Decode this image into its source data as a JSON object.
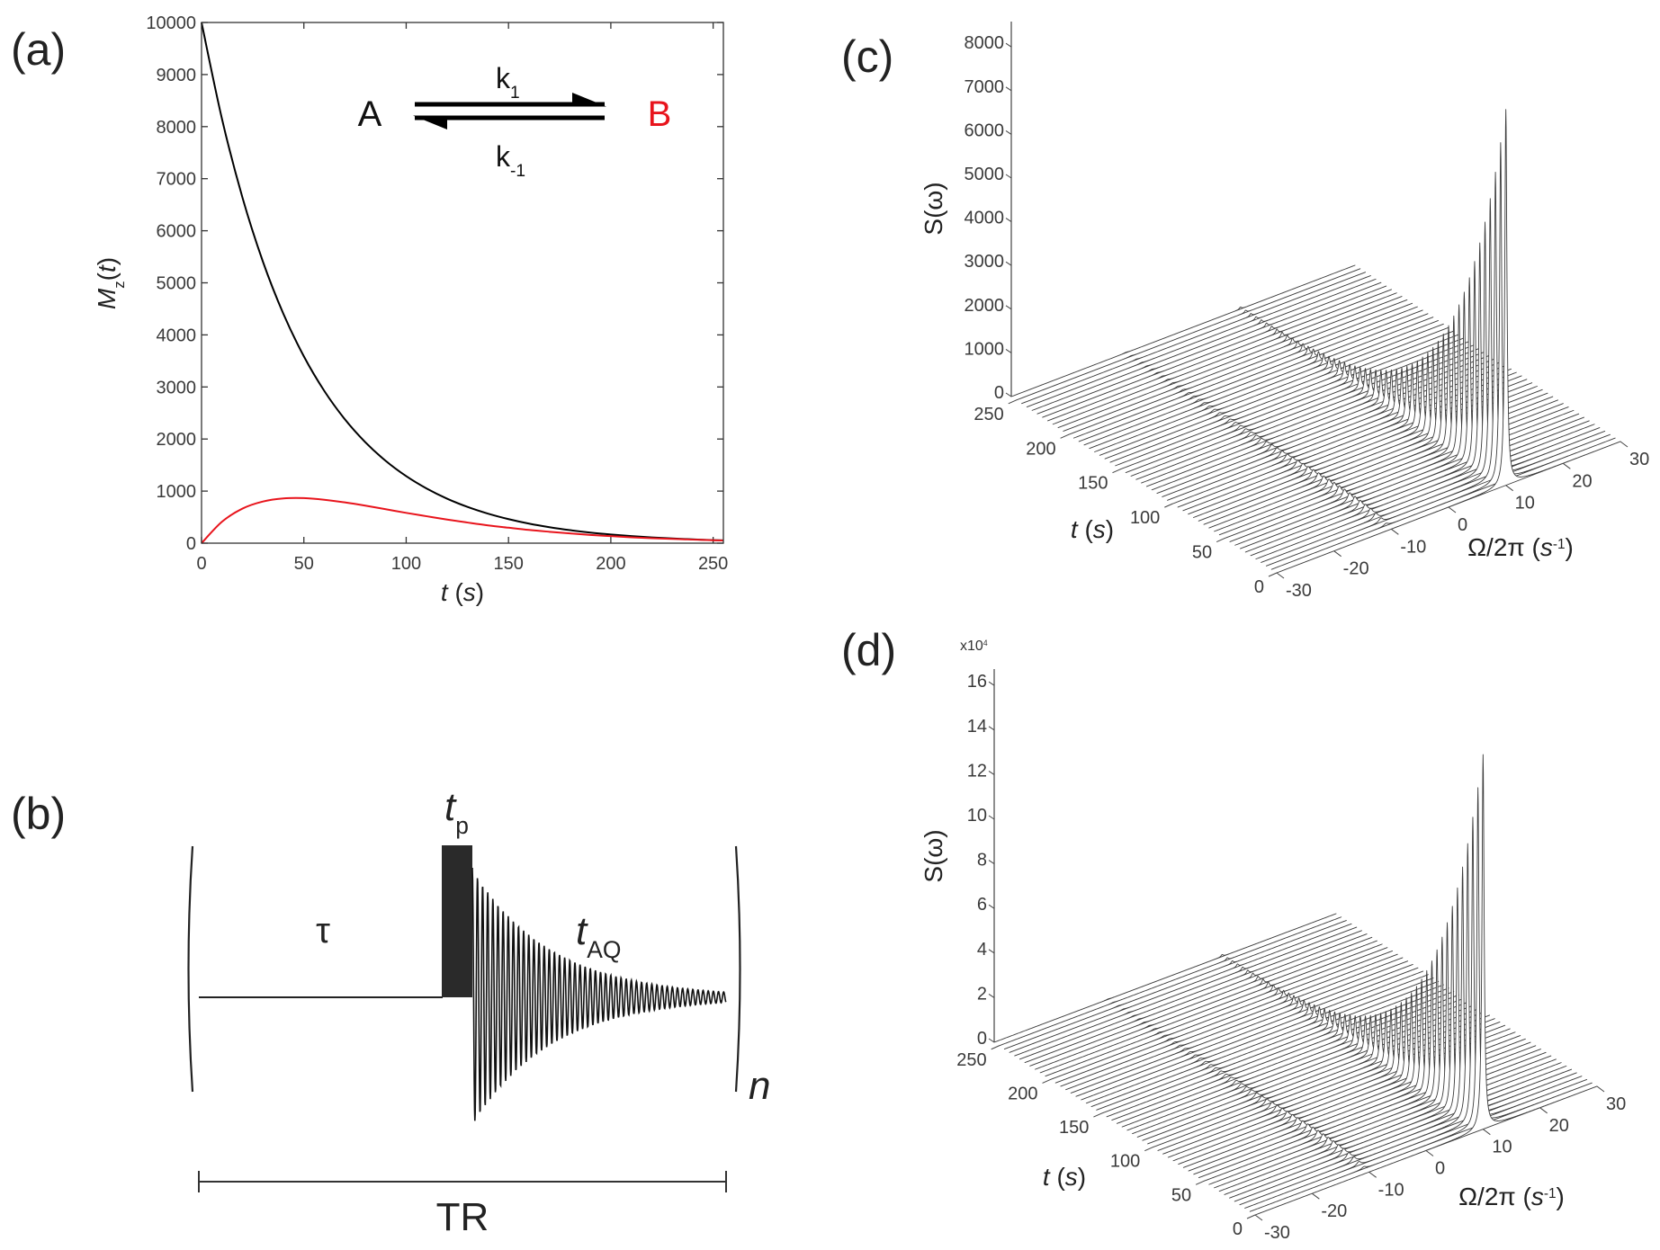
{
  "panel_labels": {
    "a": "(a)",
    "b": "(b)",
    "c": "(c)",
    "d": "(d)"
  },
  "colors": {
    "species_A": "#000000",
    "species_B": "#e8141c",
    "waterfall": "#3c3c3c"
  },
  "reaction": {
    "A": "A",
    "B": "B",
    "k_forward": [
      {
        "text": "k"
      },
      {
        "text": "1",
        "sub": true
      }
    ],
    "k_reverse": [
      {
        "text": "k"
      },
      {
        "text": "-1",
        "sub": true
      }
    ]
  },
  "sequence": {
    "tau": "τ",
    "t_p": [
      {
        "text": "t",
        "italic": true
      },
      {
        "text": "p",
        "sub": true
      }
    ],
    "t_AQ": [
      {
        "text": "t",
        "italic": true
      },
      {
        "text": "AQ",
        "sub": true
      }
    ],
    "repeat": "n",
    "TR": "TR"
  },
  "chart_data": [
    {
      "id": "a",
      "type": "line",
      "title": "",
      "xlabel": [
        {
          "text": "t",
          "italic": true
        },
        {
          "text": " ("
        },
        {
          "text": "s",
          "italic": true
        },
        {
          "text": ")"
        }
      ],
      "ylabel": [
        {
          "text": "M",
          "italic": true
        },
        {
          "text": "z",
          "sub": true
        },
        {
          "text": "("
        },
        {
          "text": "t",
          "italic": true
        },
        {
          "text": ")"
        }
      ],
      "xlim": [
        0,
        255
      ],
      "ylim": [
        0,
        10000
      ],
      "xticks": [
        0,
        50,
        100,
        150,
        200,
        250
      ],
      "yticks": [
        0,
        1000,
        2000,
        3000,
        4000,
        5000,
        6000,
        7000,
        8000,
        9000,
        10000
      ],
      "grid": false,
      "x": [
        0,
        10,
        20,
        30,
        40,
        50,
        60,
        70,
        80,
        90,
        100,
        110,
        120,
        130,
        140,
        150,
        160,
        170,
        180,
        190,
        200,
        210,
        220,
        230,
        240,
        250,
        255
      ],
      "series": [
        {
          "name": "A",
          "color": "#000000",
          "values": [
            10000,
            8146,
            6637,
            5406,
            4404,
            3588,
            2923,
            2381,
            1940,
            1580,
            1287,
            1049,
            854,
            696,
            567,
            462,
            376,
            307,
            250,
            203,
            166,
            135,
            110,
            90,
            73,
            59,
            53
          ]
        },
        {
          "name": "B",
          "color": "#e8141c",
          "values": [
            0,
            412,
            664,
            800,
            859,
            865,
            834,
            783,
            721,
            652,
            582,
            517,
            453,
            396,
            342,
            297,
            254,
            219,
            187,
            158,
            135,
            113,
            96,
            82,
            68,
            57,
            52
          ]
        }
      ]
    },
    {
      "id": "c",
      "type": "line",
      "subtype": "waterfall",
      "zlabel": [
        {
          "text": "S(ω)"
        }
      ],
      "tlabel": [
        {
          "text": "t",
          "italic": true
        },
        {
          "text": " ("
        },
        {
          "text": "s",
          "italic": true
        },
        {
          "text": ")"
        }
      ],
      "wlabel": [
        {
          "text": "Ω/2π ("
        },
        {
          "text": "s",
          "italic": true
        },
        {
          "text": "-1",
          "sup": true
        },
        {
          "text": ")"
        }
      ],
      "zmultiplier": "",
      "zlim": [
        0,
        8500
      ],
      "zticks": [
        0,
        1000,
        2000,
        3000,
        4000,
        5000,
        6000,
        7000,
        8000
      ],
      "zticklabels": [
        "0",
        "1000",
        "2000",
        "3000",
        "4000",
        "5000",
        "6000",
        "7000",
        "8000"
      ],
      "tlim": [
        0,
        255
      ],
      "tticks": [
        0,
        50,
        100,
        150,
        200,
        250
      ],
      "wlim": [
        -30,
        30
      ],
      "wticks": [
        -30,
        -20,
        -10,
        0,
        10,
        20,
        30
      ],
      "t_step": 5,
      "peaks": [
        {
          "name": "A",
          "omega": 10,
          "hwhm": 0.22,
          "height_t0": 8600,
          "decay_rate": 0.0205
        },
        {
          "name": "B",
          "omega": -10,
          "hwhm": 0.45,
          "max_height": 200,
          "decay_rate": 0.0205,
          "rise_rate": 0.023
        }
      ]
    },
    {
      "id": "d",
      "type": "line",
      "subtype": "waterfall",
      "zlabel": [
        {
          "text": "S(ω)"
        }
      ],
      "tlabel": [
        {
          "text": "t",
          "italic": true
        },
        {
          "text": " ("
        },
        {
          "text": "s",
          "italic": true
        },
        {
          "text": ")"
        }
      ],
      "wlabel": [
        {
          "text": "Ω/2π ("
        },
        {
          "text": "s",
          "italic": true
        },
        {
          "text": "-1",
          "sup": true
        },
        {
          "text": ")"
        }
      ],
      "zmultiplier": [
        {
          "text": "x10"
        },
        {
          "text": "4",
          "sup": true
        }
      ],
      "zlim": [
        0,
        17
      ],
      "zticks": [
        0,
        2,
        4,
        6,
        8,
        10,
        12,
        14,
        16
      ],
      "zticklabels": [
        "0",
        "2",
        "4",
        "6",
        "8",
        "10",
        "12",
        "14",
        "16"
      ],
      "tlim": [
        0,
        255
      ],
      "tticks": [
        0,
        50,
        100,
        150,
        200,
        250
      ],
      "wlim": [
        -30,
        30
      ],
      "wticks": [
        -30,
        -20,
        -10,
        0,
        10,
        20,
        30
      ],
      "t_step": 5,
      "peaks": [
        {
          "name": "A",
          "omega": 10,
          "hwhm": 0.22,
          "height_t0": 16.8,
          "decay_rate": 0.0205
        },
        {
          "name": "B",
          "omega": -10,
          "hwhm": 0.45,
          "max_height": 0.35,
          "decay_rate": 0.0205,
          "rise_rate": 0.023
        }
      ]
    }
  ]
}
